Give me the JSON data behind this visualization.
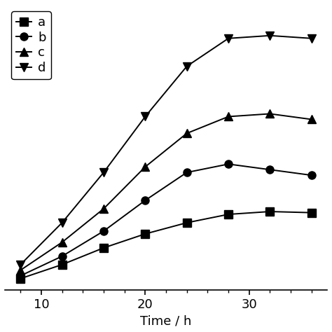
{
  "series": {
    "a": {
      "x": [
        8,
        12,
        16,
        20,
        24,
        28,
        32,
        36
      ],
      "y": [
        1.0,
        3.5,
        6.5,
        9.0,
        11.0,
        12.5,
        13.0,
        12.8
      ],
      "marker": "s",
      "label": "a"
    },
    "b": {
      "x": [
        8,
        12,
        16,
        20,
        24,
        28,
        32,
        36
      ],
      "y": [
        1.5,
        5.0,
        9.5,
        15.0,
        20.0,
        21.5,
        20.5,
        19.5
      ],
      "marker": "o",
      "label": "b"
    },
    "c": {
      "x": [
        8,
        12,
        16,
        20,
        24,
        28,
        32,
        36
      ],
      "y": [
        2.5,
        7.5,
        13.5,
        21.0,
        27.0,
        30.0,
        30.5,
        29.5
      ],
      "marker": "^",
      "label": "c"
    },
    "d": {
      "x": [
        8,
        12,
        16,
        20,
        24,
        28,
        32,
        36
      ],
      "y": [
        3.5,
        11.0,
        20.0,
        30.0,
        39.0,
        44.0,
        44.5,
        44.0
      ],
      "marker": "v",
      "label": "d"
    }
  },
  "xlabel": "Time / h",
  "xlim": [
    6.5,
    37.5
  ],
  "ylim": [
    -1,
    50
  ],
  "xticks": [
    10,
    20,
    30
  ],
  "line_color": "#000000",
  "marker_color": "#000000",
  "background_color": "#ffffff",
  "legend_loc": "upper left",
  "fontsize": 13,
  "markersize": 8,
  "linewidth": 1.4
}
